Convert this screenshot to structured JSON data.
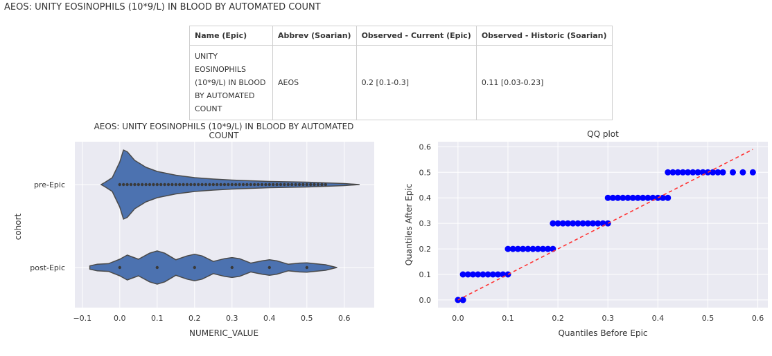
{
  "page": {
    "title": "AEOS: UNITY EOSINOPHILS (10*9/L) IN BLOOD BY AUTOMATED COUNT"
  },
  "table": {
    "headers": [
      "Name (Epic)",
      "Abbrev (Soarian)",
      "Observed - Current (Epic)",
      "Observed - Historic (Soarian)"
    ],
    "row": {
      "name_lines": [
        "UNITY",
        "EOSINOPHILS",
        "(10*9/L) IN BLOOD",
        "BY AUTOMATED",
        "COUNT"
      ],
      "abbrev": "AEOS",
      "current": "0.2 [0.1-0.3]",
      "historic": "0.11 [0.03-0.23]"
    }
  },
  "chart_data": [
    {
      "type": "violin",
      "title_lines": [
        "AEOS: UNITY EOSINOPHILS (10*9/L) IN BLOOD BY AUTOMATED",
        "COUNT"
      ],
      "xlabel": "NUMERIC_VALUE",
      "ylabel": "cohort",
      "xlim": [
        -0.12,
        0.68
      ],
      "xticks": [
        -0.1,
        0.0,
        0.1,
        0.2,
        0.3,
        0.4,
        0.5,
        0.6
      ],
      "xtick_labels": [
        "−0.1",
        "0.0",
        "0.1",
        "0.2",
        "0.3",
        "0.4",
        "0.5",
        "0.6"
      ],
      "categories": [
        "pre-Epic",
        "post-Epic"
      ],
      "color": "#4c72b0",
      "grid": true,
      "violins": [
        {
          "name": "pre-Epic",
          "range": [
            -0.05,
            0.64
          ],
          "profile": [
            [
              -0.05,
              0.0
            ],
            [
              -0.04,
              0.06
            ],
            [
              -0.02,
              0.2
            ],
            [
              0.0,
              0.65
            ],
            [
              0.01,
              1.0
            ],
            [
              0.02,
              0.95
            ],
            [
              0.04,
              0.7
            ],
            [
              0.07,
              0.5
            ],
            [
              0.1,
              0.38
            ],
            [
              0.15,
              0.27
            ],
            [
              0.2,
              0.2
            ],
            [
              0.25,
              0.16
            ],
            [
              0.3,
              0.13
            ],
            [
              0.35,
              0.11
            ],
            [
              0.4,
              0.09
            ],
            [
              0.45,
              0.08
            ],
            [
              0.5,
              0.07
            ],
            [
              0.55,
              0.05
            ],
            [
              0.6,
              0.03
            ],
            [
              0.64,
              0.0
            ]
          ],
          "points": [
            0.0,
            0.01,
            0.02,
            0.03,
            0.04,
            0.05,
            0.06,
            0.07,
            0.08,
            0.09,
            0.1,
            0.11,
            0.12,
            0.13,
            0.14,
            0.15,
            0.16,
            0.17,
            0.18,
            0.19,
            0.2,
            0.21,
            0.22,
            0.23,
            0.24,
            0.25,
            0.26,
            0.27,
            0.28,
            0.29,
            0.3,
            0.31,
            0.32,
            0.33,
            0.34,
            0.35,
            0.36,
            0.37,
            0.38,
            0.39,
            0.4,
            0.41,
            0.42,
            0.43,
            0.44,
            0.45,
            0.46,
            0.47,
            0.48,
            0.49,
            0.5,
            0.51,
            0.52,
            0.53,
            0.54,
            0.55
          ]
        },
        {
          "name": "post-Epic",
          "range": [
            -0.08,
            0.58
          ],
          "profile": [
            [
              -0.08,
              0.06
            ],
            [
              -0.06,
              0.12
            ],
            [
              -0.03,
              0.14
            ],
            [
              0.0,
              0.3
            ],
            [
              0.02,
              0.45
            ],
            [
              0.05,
              0.3
            ],
            [
              0.08,
              0.52
            ],
            [
              0.1,
              0.6
            ],
            [
              0.12,
              0.52
            ],
            [
              0.15,
              0.28
            ],
            [
              0.18,
              0.42
            ],
            [
              0.2,
              0.48
            ],
            [
              0.22,
              0.42
            ],
            [
              0.25,
              0.22
            ],
            [
              0.28,
              0.32
            ],
            [
              0.3,
              0.36
            ],
            [
              0.32,
              0.32
            ],
            [
              0.35,
              0.16
            ],
            [
              0.38,
              0.24
            ],
            [
              0.4,
              0.28
            ],
            [
              0.42,
              0.24
            ],
            [
              0.45,
              0.12
            ],
            [
              0.48,
              0.16
            ],
            [
              0.5,
              0.17
            ],
            [
              0.52,
              0.14
            ],
            [
              0.55,
              0.1
            ],
            [
              0.58,
              0.0
            ]
          ],
          "points": [
            0.0,
            0.1,
            0.2,
            0.3,
            0.4,
            0.5
          ]
        }
      ]
    },
    {
      "type": "scatter",
      "title": "QQ plot",
      "xlabel": "Quantiles Before Epic",
      "ylabel": "Quantiles After Epic",
      "xlim": [
        -0.04,
        0.62
      ],
      "ylim": [
        -0.03,
        0.62
      ],
      "xticks": [
        0.0,
        0.1,
        0.2,
        0.3,
        0.4,
        0.5,
        0.6
      ],
      "xtick_labels": [
        "0.0",
        "0.1",
        "0.2",
        "0.3",
        "0.4",
        "0.5",
        "0.6"
      ],
      "yticks": [
        0.0,
        0.1,
        0.2,
        0.3,
        0.4,
        0.5,
        0.6
      ],
      "ytick_labels": [
        "0.0",
        "0.1",
        "0.2",
        "0.3",
        "0.4",
        "0.5",
        "0.6"
      ],
      "grid": true,
      "point_color": "#0000ff",
      "line_color": "#ff3333",
      "reference_line": {
        "x": [
          0.0,
          0.59
        ],
        "y": [
          0.0,
          0.59
        ]
      },
      "series": [
        {
          "x": [
            0.0,
            0.01,
            0.01,
            0.01,
            0.02,
            0.03,
            0.04,
            0.05,
            0.06,
            0.07,
            0.08,
            0.09,
            0.1,
            0.1,
            0.11,
            0.12,
            0.13,
            0.14,
            0.15,
            0.16,
            0.17,
            0.18,
            0.19,
            0.19,
            0.2,
            0.21,
            0.22,
            0.23,
            0.24,
            0.25,
            0.26,
            0.27,
            0.28,
            0.29,
            0.3,
            0.3,
            0.31,
            0.32,
            0.33,
            0.34,
            0.35,
            0.36,
            0.37,
            0.38,
            0.39,
            0.4,
            0.41,
            0.42,
            0.42,
            0.43,
            0.44,
            0.45,
            0.46,
            0.47,
            0.48,
            0.49,
            0.5,
            0.51,
            0.52,
            0.53,
            0.55,
            0.57,
            0.59
          ],
          "y": [
            0.0,
            0.0,
            0.0,
            0.1,
            0.1,
            0.1,
            0.1,
            0.1,
            0.1,
            0.1,
            0.1,
            0.1,
            0.1,
            0.2,
            0.2,
            0.2,
            0.2,
            0.2,
            0.2,
            0.2,
            0.2,
            0.2,
            0.2,
            0.3,
            0.3,
            0.3,
            0.3,
            0.3,
            0.3,
            0.3,
            0.3,
            0.3,
            0.3,
            0.3,
            0.3,
            0.4,
            0.4,
            0.4,
            0.4,
            0.4,
            0.4,
            0.4,
            0.4,
            0.4,
            0.4,
            0.4,
            0.4,
            0.4,
            0.5,
            0.5,
            0.5,
            0.5,
            0.5,
            0.5,
            0.5,
            0.5,
            0.5,
            0.5,
            0.5,
            0.5,
            0.5,
            0.5,
            0.5
          ]
        }
      ]
    }
  ]
}
